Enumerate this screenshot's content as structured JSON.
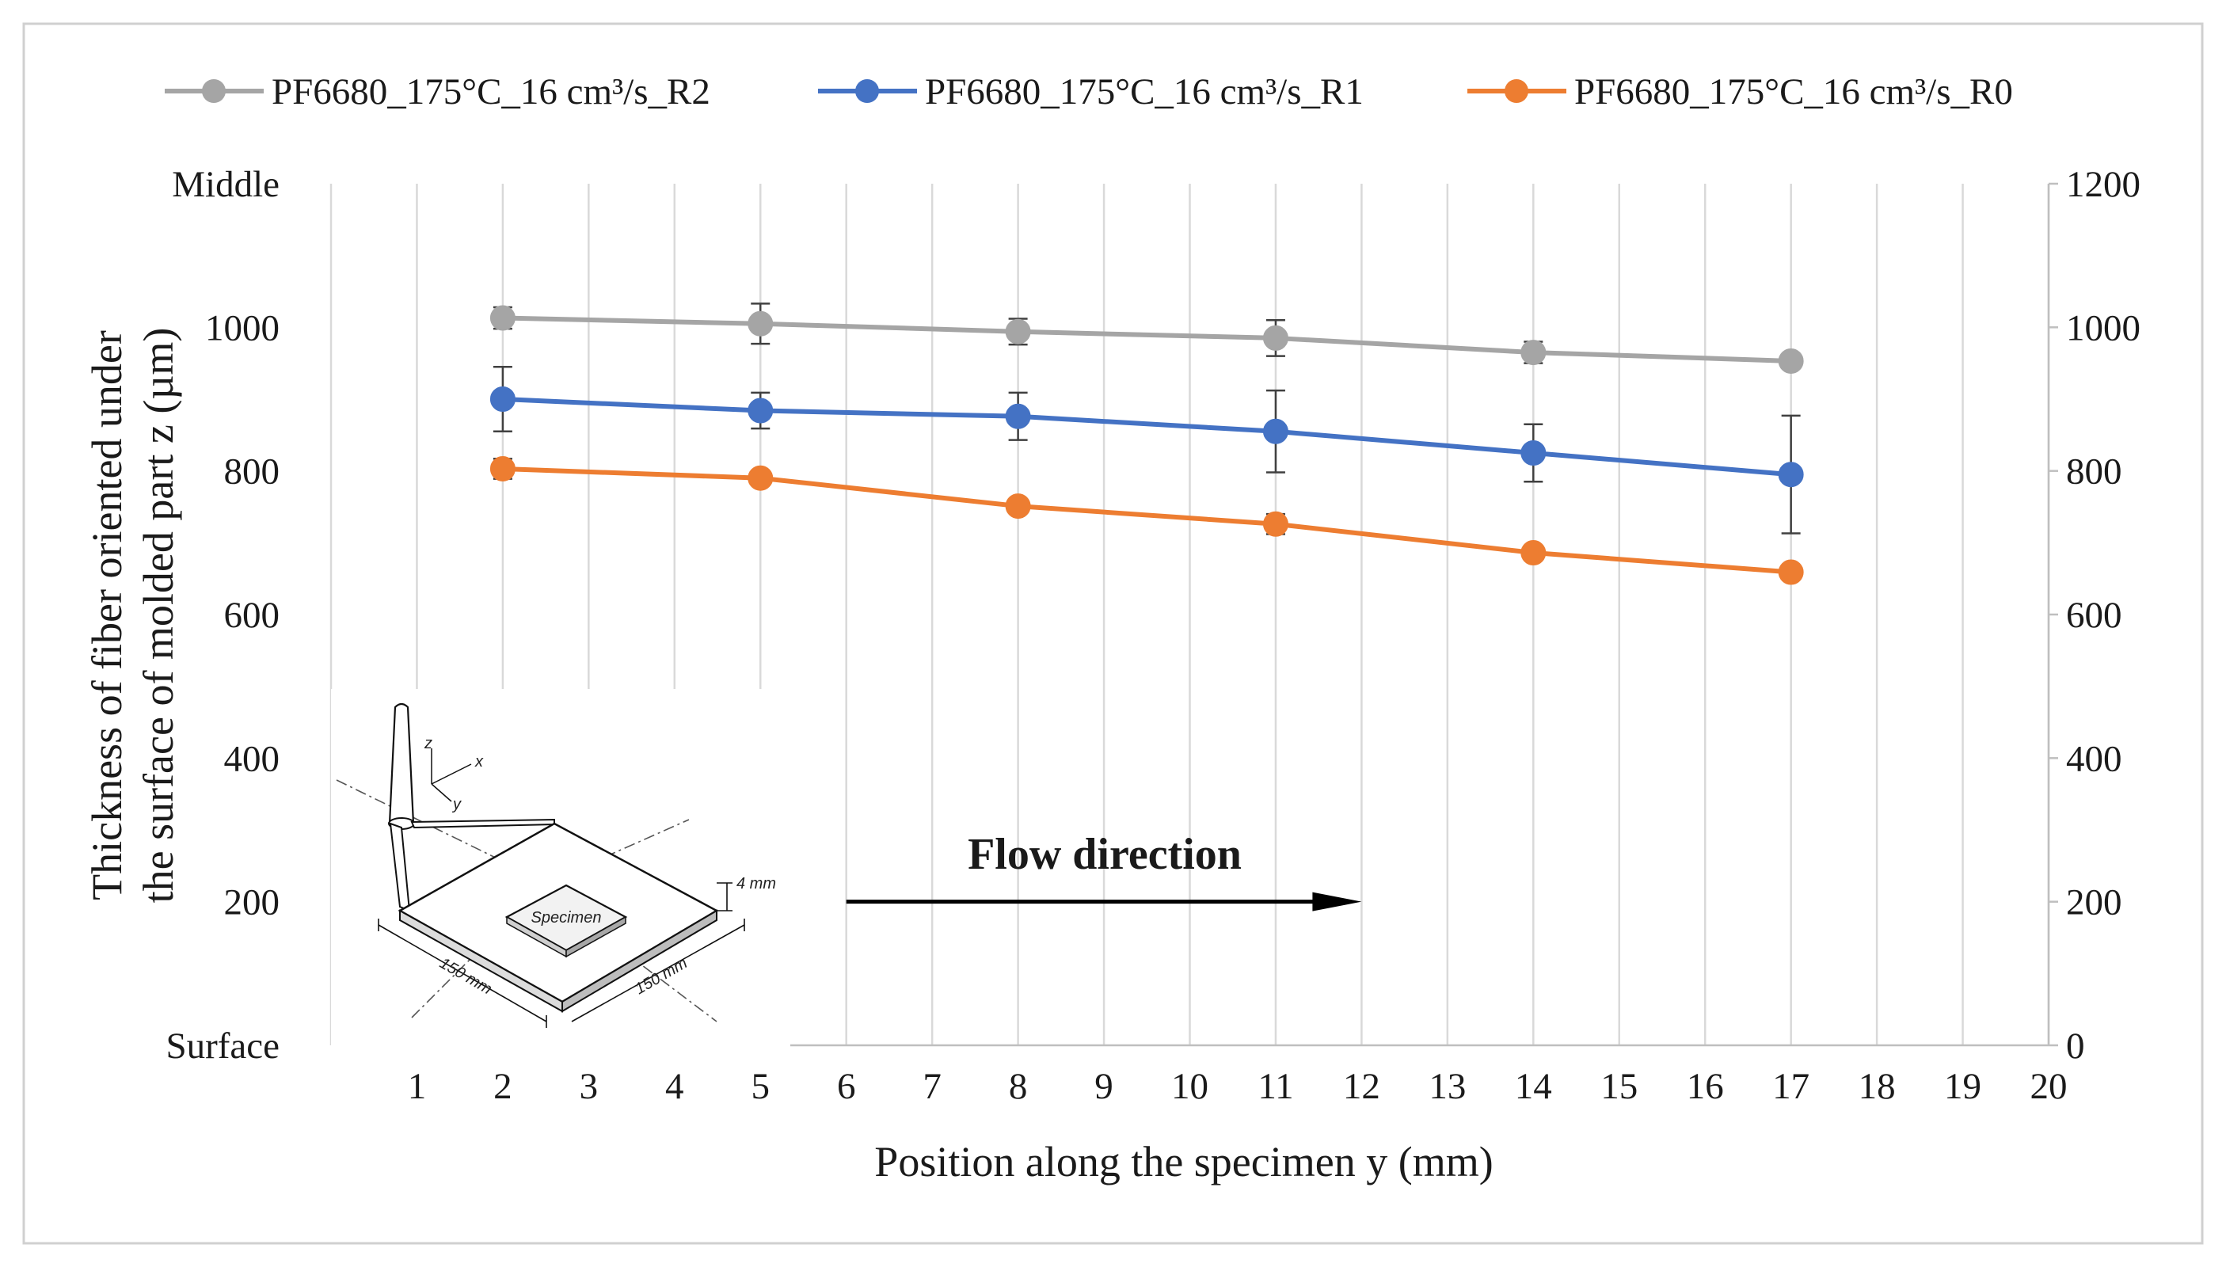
{
  "chart_data": {
    "type": "line",
    "title": "",
    "xlabel": "Position along the specimen y (mm)",
    "ylabel_line1": "Thickness  of fiber oriented under",
    "ylabel_line2": "the surface of molded part  z (µm)",
    "xlim": [
      0,
      20
    ],
    "ylim": [
      0,
      1200
    ],
    "x_ticks": [
      1,
      2,
      3,
      4,
      5,
      6,
      7,
      8,
      9,
      10,
      11,
      12,
      13,
      14,
      15,
      16,
      17,
      18,
      19,
      20
    ],
    "y_ticks_left": [
      "Surface",
      "200",
      "400",
      "600",
      "800",
      "1000",
      "Middle"
    ],
    "y_ticks_left_values": [
      0,
      200,
      400,
      600,
      800,
      1000,
      1200
    ],
    "y_ticks_right": [
      "0",
      "200",
      "400",
      "600",
      "800",
      "1000",
      "1200"
    ],
    "y_ticks_right_values": [
      0,
      200,
      400,
      600,
      800,
      1000,
      1200
    ],
    "grid": "vertical",
    "legend_position": "top",
    "x": [
      2,
      5,
      8,
      11,
      14,
      17
    ],
    "series": [
      {
        "name": "PF6680_175°C_16 cm³/s_R2",
        "color": "#a5a5a5",
        "values": [
          1013,
          1005,
          994,
          985,
          965,
          953
        ],
        "errors": [
          15,
          28,
          18,
          25,
          15,
          10
        ]
      },
      {
        "name": "PF6680_175°C_16 cm³/s_R1",
        "color": "#4472c4",
        "values": [
          900,
          884,
          876,
          855,
          825,
          795
        ],
        "errors": [
          45,
          25,
          33,
          57,
          40,
          82
        ]
      },
      {
        "name": "PF6680_175°C_16 cm³/s_R0",
        "color": "#ed7d31",
        "values": [
          803,
          790,
          751,
          726,
          686,
          659
        ],
        "errors": [
          14,
          10,
          8,
          14,
          10,
          8
        ]
      }
    ],
    "annotation": {
      "text": "Flow direction",
      "arrow_from_x": 6,
      "arrow_to_x": 12,
      "arrow_y": 200
    },
    "inset": {
      "label_width_1": "150 mm",
      "label_width_2": "150 mm",
      "label_thickness": "4 mm",
      "label_specimen": "Specimen",
      "axis_x": "x",
      "axis_y": "y",
      "axis_z": "z"
    }
  }
}
